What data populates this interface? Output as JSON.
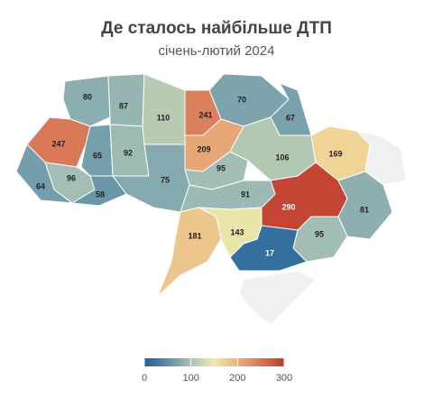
{
  "header": {
    "title": "Де сталось найбільше ДТП",
    "subtitle": "січень-лютий 2024"
  },
  "map": {
    "type": "choropleth",
    "values": [
      80,
      87,
      110,
      70,
      67,
      241,
      209,
      95,
      247,
      65,
      92,
      96,
      64,
      58,
      75,
      106,
      169,
      91,
      290,
      81,
      95,
      17,
      181,
      143
    ],
    "range": [
      0,
      300
    ],
    "ticks": [
      0,
      100,
      200,
      300
    ],
    "colors": [
      "#1d5e9b",
      "#5f8fa8",
      "#a9c3b5",
      "#f3e9a8",
      "#eab07c",
      "#d87656",
      "#c0392b"
    ],
    "no_data_color": "#eef0f2"
  }
}
